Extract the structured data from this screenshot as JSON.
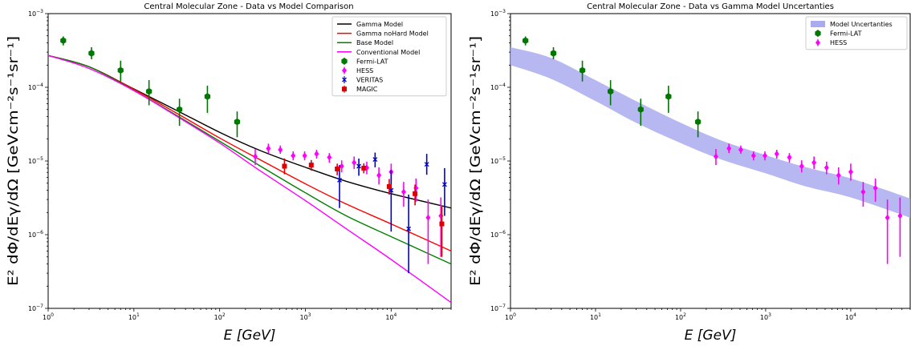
{
  "chart_data": [
    {
      "type": "line",
      "title": "Central Molecular Zone - Data vs Model Comparison",
      "xlabel": "E [GeV]",
      "ylabel": "E² dΦ/dEγ/dΩ [GeVcm⁻²s⁻¹sr⁻¹]",
      "xscale": "log",
      "yscale": "log",
      "xlim": [
        1,
        50000
      ],
      "ylim": [
        1e-07,
        0.001
      ],
      "x_ticks": [
        {
          "v": 1,
          "base": "10",
          "exp": "0"
        },
        {
          "v": 10,
          "base": "10",
          "exp": "1"
        },
        {
          "v": 100,
          "base": "10",
          "exp": "2"
        },
        {
          "v": 1000,
          "base": "10",
          "exp": "3"
        },
        {
          "v": 10000,
          "base": "10",
          "exp": "4"
        }
      ],
      "y_ticks": [
        {
          "v": 1e-07,
          "base": "10",
          "exp": "−7"
        },
        {
          "v": 1e-06,
          "base": "10",
          "exp": "−6"
        },
        {
          "v": 1e-05,
          "base": "10",
          "exp": "−5"
        },
        {
          "v": 0.0001,
          "base": "10",
          "exp": "−4"
        },
        {
          "v": 0.001,
          "base": "10",
          "exp": "−3"
        }
      ],
      "legend_position": "top-right",
      "series": [
        {
          "name": "Gamma Model",
          "kind": "line",
          "color": "#000000",
          "x": [
            1,
            3,
            10,
            30,
            100,
            300,
            1000,
            3000,
            10000,
            50000
          ],
          "y": [
            0.00027,
            0.00019,
            9.5e-05,
            5e-05,
            2.45e-05,
            1.38e-05,
            8.2e-06,
            5.3e-06,
            3.6e-06,
            2.3e-06
          ]
        },
        {
          "name": "Gamma noHard Model",
          "kind": "line",
          "color": "#ff0000",
          "x": [
            1,
            3,
            10,
            30,
            100,
            300,
            1000,
            3000,
            10000,
            50000
          ],
          "y": [
            0.00027,
            0.00019,
            9.4e-05,
            4.6e-05,
            2.05e-05,
            1.03e-05,
            4.9e-06,
            2.6e-06,
            1.4e-06,
            6e-07
          ]
        },
        {
          "name": "Base Model",
          "kind": "line",
          "color": "#008000",
          "x": [
            1,
            3,
            10,
            30,
            100,
            300,
            1000,
            3000,
            10000,
            50000
          ],
          "y": [
            0.00027,
            0.00019,
            9.1e-05,
            4.3e-05,
            1.85e-05,
            8.5e-06,
            3.7e-06,
            1.8e-06,
            9.4e-07,
            4e-07
          ]
        },
        {
          "name": "Conventional Model",
          "kind": "line",
          "color": "#ff00ff",
          "x": [
            1,
            3,
            10,
            30,
            100,
            300,
            1000,
            3000,
            10000,
            50000
          ],
          "y": [
            0.00027,
            0.00018,
            9e-05,
            4.2e-05,
            1.75e-05,
            7.3e-06,
            2.9e-06,
            1.2e-06,
            4.6e-07,
            1.2e-07
          ]
        },
        {
          "name": "Fermi-LAT",
          "kind": "errorbar",
          "marker": "hexagon",
          "color": "#007700",
          "x": [
            1.5,
            3.2,
            7,
            15,
            34,
            72,
            160
          ],
          "y": [
            0.00043,
            0.00029,
            0.00017,
            8.8e-05,
            5e-05,
            7.5e-05,
            3.4e-05
          ],
          "yerr_low": [
            0.00037,
            0.00024,
            0.00012,
            5.7e-05,
            3e-05,
            4.5e-05,
            2.1e-05
          ],
          "yerr_high": [
            0.00049,
            0.00035,
            0.00023,
            0.000125,
            7e-05,
            0.000105,
            4.7e-05
          ]
        },
        {
          "name": "HESS",
          "kind": "errorbar",
          "marker": "diamond",
          "color": "#ff00ff",
          "x": [
            260,
            370,
            510,
            720,
            980,
            1350,
            1900,
            2650,
            3700,
            5200,
            7200,
            10000,
            14000,
            19500,
            27000,
            38000
          ],
          "y": [
            1.15e-05,
            1.48e-05,
            1.42e-05,
            1.18e-05,
            1.18e-05,
            1.25e-05,
            1.12e-05,
            8.5e-06,
            9.5e-06,
            8.1e-06,
            6.4e-06,
            7.1e-06,
            3.8e-06,
            4.3e-06,
            1.7e-06,
            1.8e-06
          ],
          "yerr_low": [
            8.8e-06,
            1.28e-05,
            1.25e-05,
            1.02e-05,
            1.02e-05,
            1.08e-05,
            9.5e-06,
            7e-06,
            7.8e-06,
            6.6e-06,
            4.8e-06,
            5.4e-06,
            2.4e-06,
            2.8e-06,
            4e-07,
            5e-07
          ],
          "yerr_high": [
            1.45e-05,
            1.72e-05,
            1.62e-05,
            1.35e-05,
            1.35e-05,
            1.42e-05,
            1.28e-05,
            1.02e-05,
            1.15e-05,
            9.8e-06,
            8.2e-06,
            9.2e-06,
            5.2e-06,
            5.8e-06,
            3e-06,
            3.2e-06
          ]
        },
        {
          "name": "VERITAS",
          "kind": "errorbar",
          "marker": "x",
          "color": "#0000cc",
          "x": [
            2500,
            4200,
            6500,
            10000,
            16000,
            26000,
            42000
          ],
          "y": [
            5.5e-06,
            8.5e-06,
            1.05e-05,
            4e-06,
            1.2e-06,
            9e-06,
            4.8e-06
          ],
          "yerr_low": [
            2.3e-06,
            6.3e-06,
            8.2e-06,
            1.1e-06,
            3e-07,
            6.5e-06,
            1.8e-06
          ],
          "yerr_high": [
            8.8e-06,
            1.08e-05,
            1.3e-05,
            7.5e-06,
            3.5e-06,
            1.25e-05,
            8e-06
          ]
        },
        {
          "name": "MAGIC",
          "kind": "errorbar",
          "marker": "square",
          "color": "#dd0000",
          "x": [
            570,
            1170,
            2350,
            4800,
            9500,
            19000,
            39000
          ],
          "y": [
            8.5e-06,
            8.8e-06,
            7.8e-06,
            8e-06,
            4.5e-06,
            3.6e-06,
            1.4e-06
          ],
          "yerr_low": [
            6.6e-06,
            7.4e-06,
            6.4e-06,
            6.8e-06,
            3.5e-06,
            2.5e-06,
            5e-07
          ],
          "yerr_high": [
            1.08e-05,
            1.03e-05,
            9.2e-06,
            9.3e-06,
            5.7e-06,
            4.8e-06,
            2.4e-06
          ]
        }
      ]
    },
    {
      "type": "area",
      "title": "Central Molecular Zone - Data vs Gamma Model Uncertanties",
      "xlabel": "E [GeV]",
      "ylabel": "E² dΦ/dEγ/dΩ [GeVcm⁻²s⁻¹sr⁻¹]",
      "xscale": "log",
      "yscale": "log",
      "xlim": [
        1,
        50000
      ],
      "ylim": [
        1e-07,
        0.001
      ],
      "x_ticks": [
        {
          "v": 1,
          "base": "10",
          "exp": "0"
        },
        {
          "v": 10,
          "base": "10",
          "exp": "1"
        },
        {
          "v": 100,
          "base": "10",
          "exp": "2"
        },
        {
          "v": 1000,
          "base": "10",
          "exp": "3"
        },
        {
          "v": 10000,
          "base": "10",
          "exp": "4"
        }
      ],
      "y_ticks": [
        {
          "v": 1e-07,
          "base": "10",
          "exp": "−7"
        },
        {
          "v": 1e-06,
          "base": "10",
          "exp": "−6"
        },
        {
          "v": 1e-05,
          "base": "10",
          "exp": "−5"
        },
        {
          "v": 0.0001,
          "base": "10",
          "exp": "−4"
        },
        {
          "v": 0.001,
          "base": "10",
          "exp": "−3"
        }
      ],
      "legend_position": "top-right",
      "series": [
        {
          "name": "Model Uncertanties",
          "kind": "band",
          "color": "#aaaaf0",
          "x": [
            1,
            3,
            10,
            30,
            100,
            300,
            1000,
            3000,
            10000,
            50000
          ],
          "y_low": [
            0.0002,
            0.00013,
            6.5e-05,
            3.3e-05,
            1.75e-05,
            1.05e-05,
            6.8e-06,
            4.5e-06,
            3.2e-06,
            1.7e-06
          ],
          "y_high": [
            0.00035,
            0.00025,
            0.000125,
            6.5e-05,
            3.3e-05,
            1.9e-05,
            1.2e-05,
            8.2e-06,
            5.8e-06,
            3.1e-06
          ]
        },
        {
          "name": "Fermi-LAT",
          "kind": "errorbar",
          "marker": "hexagon",
          "color": "#007700",
          "x": [
            1.5,
            3.2,
            7,
            15,
            34,
            72,
            160
          ],
          "y": [
            0.00043,
            0.00029,
            0.00017,
            8.8e-05,
            5e-05,
            7.5e-05,
            3.4e-05
          ],
          "yerr_low": [
            0.00037,
            0.00024,
            0.00012,
            5.7e-05,
            3e-05,
            4.5e-05,
            2.1e-05
          ],
          "yerr_high": [
            0.00049,
            0.00035,
            0.00023,
            0.000125,
            7e-05,
            0.000105,
            4.7e-05
          ]
        },
        {
          "name": "HESS",
          "kind": "errorbar",
          "marker": "diamond",
          "color": "#ff00ff",
          "x": [
            260,
            370,
            510,
            720,
            980,
            1350,
            1900,
            2650,
            3700,
            5200,
            7200,
            10000,
            14000,
            19500,
            27000,
            38000
          ],
          "y": [
            1.15e-05,
            1.48e-05,
            1.42e-05,
            1.18e-05,
            1.18e-05,
            1.25e-05,
            1.12e-05,
            8.5e-06,
            9.5e-06,
            8.1e-06,
            6.4e-06,
            7.1e-06,
            3.8e-06,
            4.3e-06,
            1.7e-06,
            1.8e-06
          ],
          "yerr_low": [
            8.8e-06,
            1.28e-05,
            1.25e-05,
            1.02e-05,
            1.02e-05,
            1.08e-05,
            9.5e-06,
            7e-06,
            7.8e-06,
            6.6e-06,
            4.8e-06,
            5.4e-06,
            2.4e-06,
            2.8e-06,
            4e-07,
            5e-07
          ],
          "yerr_high": [
            1.45e-05,
            1.72e-05,
            1.62e-05,
            1.35e-05,
            1.35e-05,
            1.42e-05,
            1.28e-05,
            1.02e-05,
            1.15e-05,
            9.8e-06,
            8.2e-06,
            9.2e-06,
            5.2e-06,
            5.8e-06,
            3e-06,
            3.2e-06
          ]
        }
      ]
    }
  ]
}
